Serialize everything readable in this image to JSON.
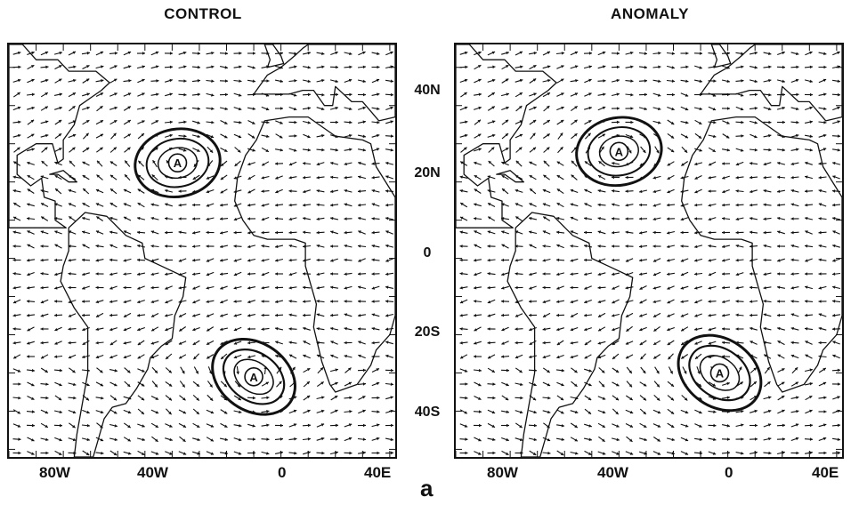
{
  "panels": [
    {
      "title": "CONTROL",
      "high_marker": "A",
      "anticyclones": [
        {
          "label": "A",
          "lon": -38,
          "lat": 25
        },
        {
          "label": "A",
          "lon": -10,
          "lat": -31
        }
      ]
    },
    {
      "title": "ANOMALY",
      "high_marker": "A",
      "anticyclones": [
        {
          "label": "A",
          "lon": -40,
          "lat": 28
        },
        {
          "label": "A",
          "lon": -3,
          "lat": -30
        }
      ]
    }
  ],
  "lat_labels": [
    "40N",
    "20N",
    "0",
    "20S",
    "40S"
  ],
  "lon_labels": [
    "80W",
    "40W",
    "0",
    "40E"
  ],
  "figure_label": "a",
  "colors": {
    "ink": "#111111",
    "background": "#ffffff"
  }
}
